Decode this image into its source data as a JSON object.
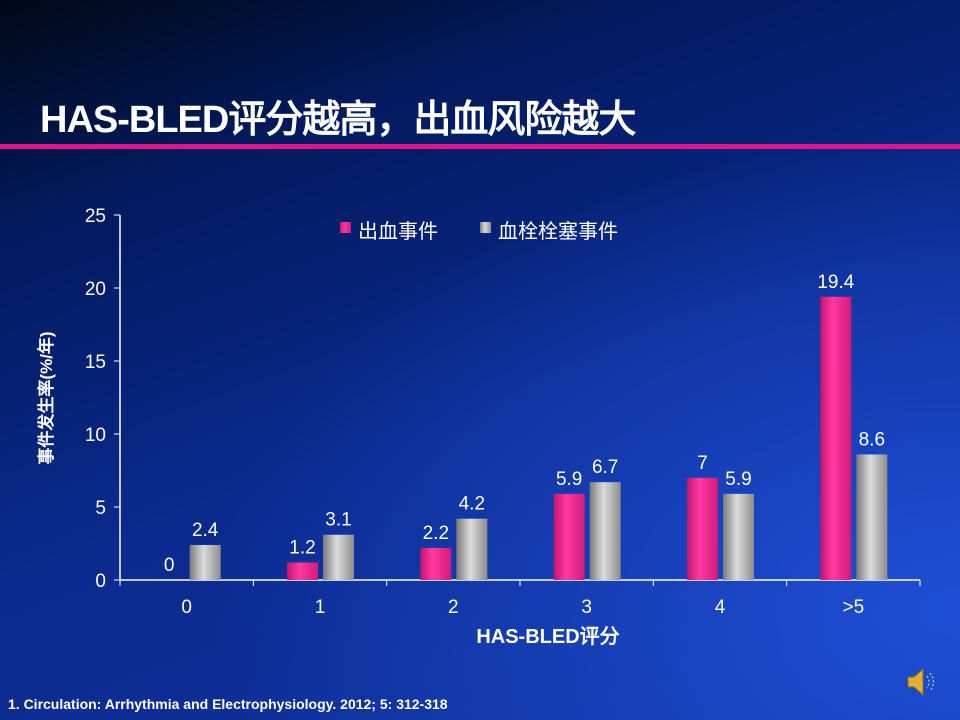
{
  "slide": {
    "title": "HAS-BLED评分越高，出血风险越大",
    "reference": "1.  Circulation: Arrhythmia and Electrophysiology. 2012; 5: 312-318"
  },
  "colors": {
    "bleeding": "#e8288c",
    "thrombo": "#b0b0b0",
    "accent_line": "#e0148c"
  },
  "chart_data": {
    "type": "bar",
    "title": "",
    "xlabel": "HAS-BLED评分",
    "ylabel": "事件发生率(%/年)",
    "categories": [
      "0",
      "1",
      "2",
      "3",
      "4",
      ">5"
    ],
    "series": [
      {
        "name": "出血事件",
        "values": [
          0,
          1.2,
          2.2,
          5.9,
          7,
          19.4
        ],
        "labels": [
          "0",
          "1.2",
          "2.2",
          "5.9",
          "7",
          "19.4"
        ]
      },
      {
        "name": "血栓栓塞事件",
        "values": [
          2.4,
          3.1,
          4.2,
          6.7,
          5.9,
          8.6
        ],
        "labels": [
          "2.4",
          "3.1",
          "4.2",
          "6.7",
          "5.9",
          "8.6"
        ]
      }
    ],
    "ylim": [
      0,
      25
    ],
    "yticks": [
      "0",
      "5",
      "10",
      "15",
      "20",
      "25"
    ],
    "grid": false,
    "legend": "top"
  }
}
